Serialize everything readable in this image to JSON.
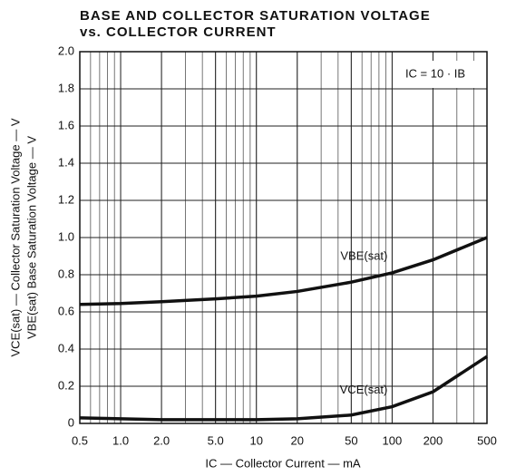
{
  "chart_data": {
    "type": "line",
    "title": "BASE AND COLLECTOR SATURATION VOLTAGE",
    "subtitle": "vs. COLLECTOR CURRENT",
    "x_label": "IC — Collector Current — mA",
    "y_label": "VCE(sat) — Collector Saturation Voltage — V",
    "y_label_2": "VBE(sat) Base Saturation Voltage — V",
    "annotation": "IC = 10 · IB",
    "x": [
      0.5,
      1,
      2,
      5,
      10,
      20,
      50,
      100,
      200,
      500
    ],
    "series": [
      {
        "name": "VBE(sat)",
        "color": "#111111",
        "values": [
          0.64,
          0.645,
          0.655,
          0.67,
          0.685,
          0.71,
          0.76,
          0.81,
          0.88,
          1.0
        ]
      },
      {
        "name": "VCE(sat)",
        "color": "#111111",
        "values": [
          0.03,
          0.025,
          0.02,
          0.02,
          0.02,
          0.025,
          0.045,
          0.09,
          0.17,
          0.36
        ]
      }
    ],
    "xlim": [
      0.5,
      500
    ],
    "x_log": true,
    "xticks": [
      0.5,
      {
        "value": 1,
        "label": "1.0"
      },
      {
        "value": 2,
        "label": "2.0"
      },
      {
        "value": 5,
        "label": "5.0"
      },
      10,
      20,
      50,
      100,
      200,
      500
    ],
    "ylim": [
      0,
      2
    ],
    "yticks": [
      0,
      0.2,
      0.4,
      0.6,
      0.8,
      {
        "value": 1,
        "label": "1.0"
      },
      1.2,
      1.4,
      1.6,
      1.8,
      {
        "value": 2,
        "label": "2.0"
      }
    ],
    "grid": true
  }
}
